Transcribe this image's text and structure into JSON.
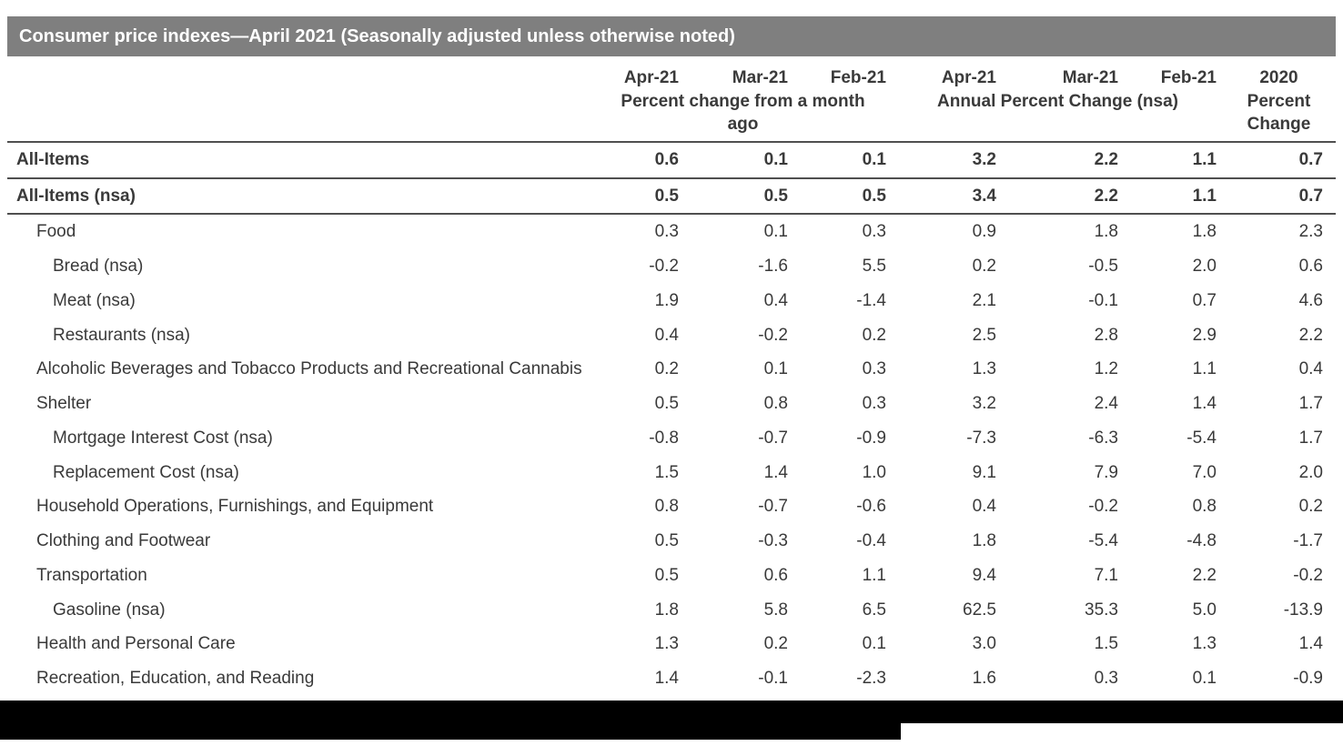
{
  "title": "Consumer price indexes—April 2021 (Seasonally adjusted unless otherwise noted)",
  "chart_data": {
    "type": "table",
    "columns": [
      "Apr-21",
      "Mar-21",
      "Feb-21",
      "Apr-21",
      "Mar-21",
      "Feb-21",
      "2020"
    ],
    "column_groups": [
      {
        "label": "Percent change from a month ago",
        "span": 3
      },
      {
        "label": "Annual Percent Change (nsa)",
        "span": 3
      },
      {
        "label": "Percent Change",
        "span": 1
      }
    ],
    "rows": [
      {
        "label": "All-Items",
        "indent": 0,
        "bold": true,
        "rule": true,
        "values": [
          "0.6",
          "0.1",
          "0.1",
          "3.2",
          "2.2",
          "1.1",
          "0.7"
        ]
      },
      {
        "label": "All-Items (nsa)",
        "indent": 0,
        "bold": true,
        "rule": true,
        "values": [
          "0.5",
          "0.5",
          "0.5",
          "3.4",
          "2.2",
          "1.1",
          "0.7"
        ]
      },
      {
        "label": "Food",
        "indent": 1,
        "bold": false,
        "rule": false,
        "values": [
          "0.3",
          "0.1",
          "0.3",
          "0.9",
          "1.8",
          "1.8",
          "2.3"
        ]
      },
      {
        "label": "Bread (nsa)",
        "indent": 2,
        "bold": false,
        "rule": false,
        "values": [
          "-0.2",
          "-1.6",
          "5.5",
          "0.2",
          "-0.5",
          "2.0",
          "0.6"
        ]
      },
      {
        "label": "Meat (nsa)",
        "indent": 2,
        "bold": false,
        "rule": false,
        "values": [
          "1.9",
          "0.4",
          "-1.4",
          "2.1",
          "-0.1",
          "0.7",
          "4.6"
        ]
      },
      {
        "label": "Restaurants (nsa)",
        "indent": 2,
        "bold": false,
        "rule": false,
        "values": [
          "0.4",
          "-0.2",
          "0.2",
          "2.5",
          "2.8",
          "2.9",
          "2.2"
        ]
      },
      {
        "label": "Alcoholic Beverages and Tobacco Products and Recreational Cannabis",
        "indent": 1,
        "bold": false,
        "rule": false,
        "values": [
          "0.2",
          "0.1",
          "0.3",
          "1.3",
          "1.2",
          "1.1",
          "0.4"
        ]
      },
      {
        "label": "Shelter",
        "indent": 1,
        "bold": false,
        "rule": false,
        "values": [
          "0.5",
          "0.8",
          "0.3",
          "3.2",
          "2.4",
          "1.4",
          "1.7"
        ]
      },
      {
        "label": "Mortgage Interest Cost (nsa)",
        "indent": 2,
        "bold": false,
        "rule": false,
        "values": [
          "-0.8",
          "-0.7",
          "-0.9",
          "-7.3",
          "-6.3",
          "-5.4",
          "1.7"
        ]
      },
      {
        "label": "Replacement Cost (nsa)",
        "indent": 2,
        "bold": false,
        "rule": false,
        "values": [
          "1.5",
          "1.4",
          "1.0",
          "9.1",
          "7.9",
          "7.0",
          "2.0"
        ]
      },
      {
        "label": "Household Operations, Furnishings, and Equipment",
        "indent": 1,
        "bold": false,
        "rule": false,
        "values": [
          "0.8",
          "-0.7",
          "-0.6",
          "0.4",
          "-0.2",
          "0.8",
          "0.2"
        ]
      },
      {
        "label": "Clothing and Footwear",
        "indent": 1,
        "bold": false,
        "rule": false,
        "values": [
          "0.5",
          "-0.3",
          "-0.4",
          "1.8",
          "-5.4",
          "-4.8",
          "-1.7"
        ]
      },
      {
        "label": "Transportation",
        "indent": 1,
        "bold": false,
        "rule": false,
        "values": [
          "0.5",
          "0.6",
          "1.1",
          "9.4",
          "7.1",
          "2.2",
          "-0.2"
        ]
      },
      {
        "label": "Gasoline (nsa)",
        "indent": 2,
        "bold": false,
        "rule": false,
        "values": [
          "1.8",
          "5.8",
          "6.5",
          "62.5",
          "35.3",
          "5.0",
          "-13.9"
        ]
      },
      {
        "label": "Health and Personal Care",
        "indent": 1,
        "bold": false,
        "rule": false,
        "values": [
          "1.3",
          "0.2",
          "0.1",
          "3.0",
          "1.5",
          "1.3",
          "1.4"
        ]
      },
      {
        "label": "Recreation, Education, and Reading",
        "indent": 1,
        "bold": false,
        "rule": false,
        "values": [
          "1.4",
          "-0.1",
          "-2.3",
          "1.6",
          "0.3",
          "0.1",
          "-0.9"
        ]
      }
    ]
  }
}
